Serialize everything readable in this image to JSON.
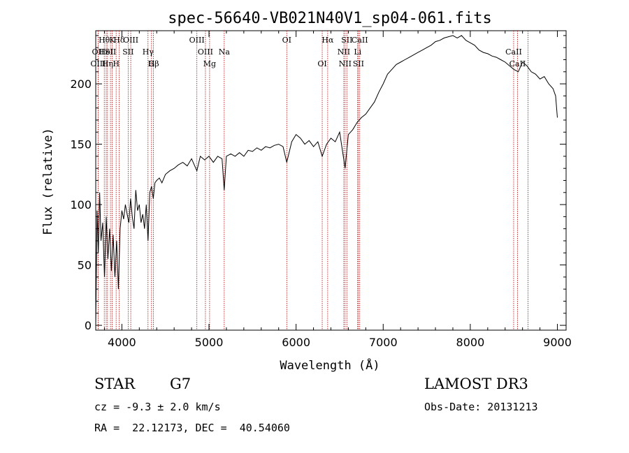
{
  "chart_data": {
    "type": "line",
    "title": "spec-56640-VB021N40V1_sp04-061.fits",
    "xlabel": "Wavelength (Å)",
    "ylabel": "Flux (relative)",
    "xlim": [
      3700,
      9100
    ],
    "ylim": [
      -4,
      244
    ],
    "x_ticks": [
      4000,
      5000,
      6000,
      7000,
      8000,
      9000
    ],
    "y_ticks": [
      0,
      50,
      100,
      150,
      200
    ],
    "series": [
      {
        "name": "flux",
        "x": [
          3700,
          3715,
          3730,
          3745,
          3760,
          3780,
          3800,
          3820,
          3840,
          3860,
          3880,
          3900,
          3920,
          3940,
          3960,
          3980,
          4000,
          4020,
          4040,
          4060,
          4080,
          4100,
          4120,
          4140,
          4160,
          4180,
          4200,
          4220,
          4240,
          4260,
          4280,
          4300,
          4320,
          4340,
          4360,
          4380,
          4400,
          4430,
          4460,
          4500,
          4550,
          4600,
          4650,
          4700,
          4750,
          4800,
          4861,
          4900,
          4950,
          5000,
          5050,
          5100,
          5150,
          5175,
          5200,
          5250,
          5300,
          5350,
          5400,
          5450,
          5500,
          5550,
          5600,
          5650,
          5700,
          5750,
          5800,
          5850,
          5893,
          5950,
          6000,
          6050,
          6100,
          6150,
          6200,
          6250,
          6300,
          6350,
          6400,
          6450,
          6500,
          6563,
          6600,
          6650,
          6700,
          6750,
          6800,
          6850,
          6900,
          6950,
          7000,
          7050,
          7100,
          7150,
          7200,
          7250,
          7300,
          7350,
          7400,
          7450,
          7500,
          7550,
          7600,
          7650,
          7700,
          7750,
          7800,
          7850,
          7900,
          7950,
          8000,
          8050,
          8100,
          8150,
          8200,
          8250,
          8300,
          8350,
          8400,
          8450,
          8500,
          8550,
          8600,
          8650,
          8700,
          8750,
          8800,
          8850,
          8900,
          8950,
          8980,
          9000
        ],
        "values": [
          0,
          95,
          60,
          110,
          70,
          85,
          40,
          90,
          55,
          80,
          45,
          75,
          40,
          70,
          30,
          80,
          95,
          88,
          100,
          92,
          85,
          105,
          90,
          80,
          112,
          95,
          100,
          85,
          92,
          80,
          100,
          70,
          110,
          115,
          105,
          118,
          120,
          122,
          118,
          125,
          128,
          130,
          133,
          135,
          132,
          138,
          128,
          140,
          137,
          140,
          135,
          140,
          138,
          112,
          140,
          142,
          140,
          143,
          140,
          145,
          144,
          147,
          145,
          148,
          147,
          149,
          150,
          148,
          135,
          152,
          158,
          155,
          150,
          153,
          148,
          152,
          140,
          150,
          155,
          152,
          160,
          130,
          158,
          162,
          168,
          172,
          175,
          180,
          185,
          193,
          200,
          208,
          212,
          216,
          218,
          220,
          222,
          224,
          226,
          228,
          230,
          232,
          235,
          236,
          238,
          239,
          240,
          238,
          240,
          236,
          234,
          232,
          228,
          226,
          225,
          223,
          222,
          220,
          218,
          215,
          212,
          210,
          218,
          215,
          210,
          208,
          204,
          206,
          200,
          196,
          190,
          172
        ]
      }
    ],
    "spectral_lines": [
      {
        "label": "OII",
        "x": 3727,
        "row": 1
      },
      {
        "label": "OIII",
        "x": 3727,
        "row": 2
      },
      {
        "label": "Hθ",
        "x": 3798,
        "row": 0
      },
      {
        "label": "HeI",
        "x": 3820,
        "row": 1
      },
      {
        "label": "Hη",
        "x": 3835,
        "row": 2
      },
      {
        "label": "SII",
        "x": 3869,
        "row": 1
      },
      {
        "label": "K",
        "x": 3889,
        "row": 0
      },
      {
        "label": "H",
        "x": 3934,
        "row": 2
      },
      {
        "label": "Hδ",
        "x": 3968,
        "row": 0
      },
      {
        "label": "SII",
        "x": 4072,
        "row": 1
      },
      {
        "label": "OIII",
        "x": 4102,
        "row": 0
      },
      {
        "label": "Hγ",
        "x": 4300,
        "row": 1
      },
      {
        "label": "G",
        "x": 4340,
        "row": 2
      },
      {
        "label": "Hβ",
        "x": 4363,
        "row": 2
      },
      {
        "label": "OIII",
        "x": 4861,
        "row": 0
      },
      {
        "label": "OIII",
        "x": 4959,
        "row": 1
      },
      {
        "label": "Mg",
        "x": 5007,
        "row": 2
      },
      {
        "label": "Na",
        "x": 5175,
        "row": 1
      },
      {
        "label": "OI",
        "x": 5893,
        "row": 0
      },
      {
        "label": "OI",
        "x": 6300,
        "row": 2
      },
      {
        "label": "Hα",
        "x": 6363,
        "row": 0
      },
      {
        "label": "NII",
        "x": 6548,
        "row": 1
      },
      {
        "label": "NII",
        "x": 6563,
        "row": 2
      },
      {
        "label": "SII",
        "x": 6583,
        "row": 0
      },
      {
        "label": "Li",
        "x": 6707,
        "row": 1
      },
      {
        "label": "SII",
        "x": 6716,
        "row": 2
      },
      {
        "label": "CaII",
        "x": 6731,
        "row": 0
      },
      {
        "label": "CaII",
        "x": 8498,
        "row": 1
      },
      {
        "label": "CaII",
        "x": 8542,
        "row": 2
      },
      {
        "label": "",
        "x": 8662,
        "row": 0
      }
    ]
  },
  "info": {
    "object_class": "STAR",
    "subclass": "G7",
    "survey": "LAMOST DR3",
    "cz": "cz = -9.3 ± 2.0 km/s",
    "obs_date": "Obs-Date: 20131213",
    "radec": "RA =  22.12173, DEC =  40.54060"
  }
}
